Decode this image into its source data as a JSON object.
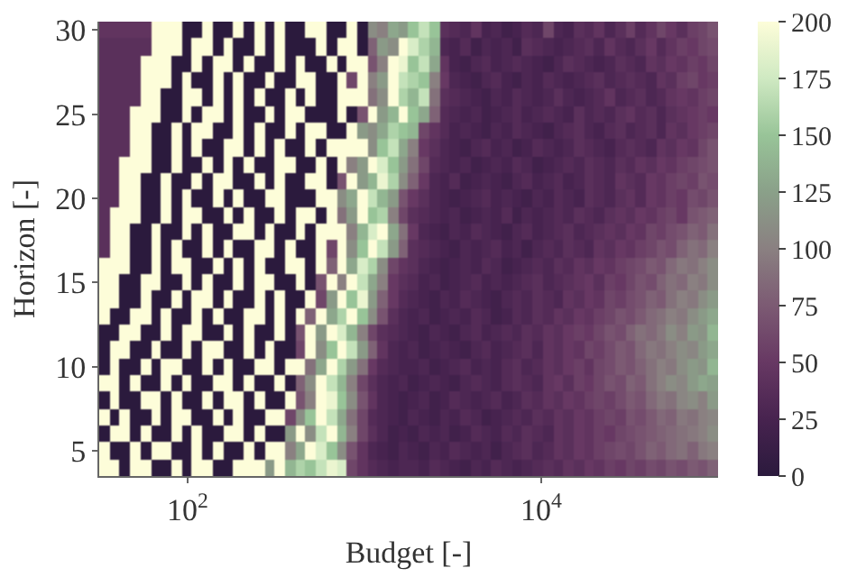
{
  "chart_data": {
    "type": "heatmap",
    "xlabel": "Budget [-]",
    "ylabel": "Horizon [-]",
    "log": "x",
    "x": [
      33.8,
      38.7,
      44.2,
      50.6,
      57.8,
      66.1,
      75.6,
      86.5,
      98.9,
      113,
      129,
      148,
      170,
      194,
      222,
      254,
      290,
      332,
      379,
      434,
      496,
      568,
      649,
      743,
      849,
      971,
      1110,
      1270,
      1450,
      1660,
      1900,
      2180,
      2490,
      2850,
      3250,
      3720,
      4260,
      4870,
      5570,
      6370,
      7280,
      8330,
      9530,
      10900,
      12500,
      14300,
      16300,
      18700,
      21300,
      24400,
      27900,
      31900,
      36500,
      41800,
      47800,
      54600,
      62500,
      71500,
      81700,
      93500
    ],
    "y": [
      30,
      29,
      28,
      27,
      26,
      25,
      24,
      23,
      22,
      21,
      20,
      19,
      18,
      17,
      16,
      15,
      14,
      13,
      12,
      11,
      10,
      9,
      8,
      7,
      6,
      5,
      4
    ],
    "xlim": [
      31.6,
      100000
    ],
    "xticks": [
      {
        "value": 100,
        "label": "10$^{2}$"
      },
      {
        "value": 10000,
        "label": "10$^{4}$"
      }
    ],
    "ylim": [
      3.5,
      30.5
    ],
    "yticks": [
      5,
      10,
      15,
      20,
      25,
      30
    ],
    "clim": [
      0,
      200
    ],
    "cticks": [
      0,
      25,
      50,
      75,
      100,
      125,
      150,
      175,
      200
    ],
    "cells": [
      [
        45,
        45,
        45,
        45,
        45,
        200,
        200,
        200,
        0,
        0,
        200,
        0,
        0,
        200,
        0,
        200,
        0,
        200,
        0,
        0,
        200,
        200,
        0,
        0,
        200,
        0,
        110,
        100,
        130,
        120,
        150,
        170,
        150,
        40,
        35,
        30,
        45,
        25,
        30,
        20,
        25,
        35,
        30,
        60,
        30,
        25,
        40,
        35,
        45,
        30,
        40,
        55,
        35,
        45,
        60,
        50,
        40,
        55,
        60,
        70
      ],
      [
        40,
        40,
        40,
        40,
        40,
        200,
        200,
        200,
        0,
        200,
        200,
        0,
        200,
        0,
        0,
        200,
        0,
        200,
        0,
        0,
        0,
        200,
        0,
        200,
        200,
        0,
        80,
        120,
        110,
        200,
        180,
        160,
        140,
        30,
        25,
        35,
        20,
        30,
        25,
        30,
        20,
        40,
        35,
        30,
        25,
        30,
        35,
        40,
        30,
        45,
        35,
        30,
        40,
        50,
        35,
        45,
        55,
        50,
        60,
        65
      ],
      [
        40,
        40,
        40,
        40,
        200,
        200,
        200,
        0,
        0,
        200,
        0,
        200,
        200,
        0,
        200,
        0,
        0,
        200,
        0,
        200,
        0,
        0,
        200,
        0,
        200,
        200,
        70,
        100,
        200,
        190,
        150,
        170,
        130,
        45,
        25,
        20,
        30,
        35,
        25,
        30,
        35,
        30,
        25,
        20,
        30,
        40,
        35,
        30,
        25,
        30,
        40,
        35,
        30,
        45,
        40,
        50,
        45,
        55,
        50,
        60
      ],
      [
        40,
        40,
        40,
        40,
        200,
        200,
        200,
        0,
        200,
        0,
        0,
        200,
        0,
        200,
        0,
        0,
        200,
        0,
        0,
        200,
        200,
        0,
        0,
        200,
        60,
        200,
        100,
        120,
        200,
        170,
        160,
        150,
        100,
        50,
        30,
        25,
        20,
        30,
        35,
        25,
        20,
        30,
        25,
        35,
        30,
        25,
        30,
        35,
        40,
        30,
        35,
        40,
        35,
        30,
        45,
        40,
        55,
        60,
        50,
        55
      ],
      [
        40,
        40,
        40,
        40,
        200,
        200,
        0,
        0,
        200,
        200,
        0,
        200,
        0,
        200,
        0,
        200,
        0,
        0,
        200,
        0,
        200,
        0,
        0,
        200,
        200,
        200,
        90,
        110,
        200,
        160,
        140,
        170,
        90,
        40,
        35,
        30,
        25,
        20,
        30,
        25,
        35,
        30,
        25,
        30,
        40,
        30,
        25,
        30,
        35,
        45,
        30,
        35,
        40,
        30,
        35,
        45,
        50,
        45,
        55,
        60
      ],
      [
        40,
        40,
        40,
        200,
        200,
        200,
        0,
        0,
        200,
        0,
        200,
        200,
        0,
        200,
        0,
        0,
        200,
        0,
        200,
        200,
        0,
        0,
        0,
        200,
        0,
        70,
        200,
        120,
        140,
        200,
        150,
        130,
        80,
        35,
        30,
        25,
        30,
        20,
        25,
        30,
        35,
        25,
        30,
        35,
        30,
        25,
        40,
        30,
        35,
        30,
        40,
        45,
        35,
        40,
        30,
        40,
        45,
        50,
        55,
        50
      ],
      [
        40,
        40,
        40,
        200,
        200,
        0,
        0,
        200,
        0,
        200,
        200,
        0,
        0,
        200,
        0,
        200,
        0,
        0,
        200,
        0,
        200,
        200,
        0,
        0,
        200,
        120,
        110,
        130,
        160,
        150,
        140,
        60,
        45,
        35,
        25,
        30,
        25,
        20,
        30,
        25,
        35,
        30,
        25,
        20,
        30,
        35,
        40,
        30,
        25,
        35,
        40,
        30,
        35,
        40,
        30,
        45,
        40,
        50,
        55,
        60
      ],
      [
        40,
        40,
        40,
        200,
        200,
        0,
        0,
        200,
        0,
        200,
        0,
        0,
        200,
        200,
        0,
        200,
        0,
        200,
        0,
        0,
        200,
        0,
        200,
        200,
        200,
        200,
        110,
        150,
        170,
        130,
        100,
        50,
        40,
        30,
        25,
        20,
        30,
        35,
        25,
        30,
        20,
        25,
        35,
        30,
        25,
        30,
        40,
        35,
        30,
        25,
        35,
        40,
        35,
        30,
        45,
        40,
        50,
        45,
        60,
        70
      ],
      [
        40,
        40,
        200,
        200,
        200,
        0,
        0,
        200,
        0,
        0,
        200,
        0,
        200,
        0,
        200,
        0,
        0,
        200,
        200,
        0,
        0,
        200,
        0,
        200,
        100,
        120,
        200,
        180,
        150,
        120,
        90,
        60,
        35,
        30,
        25,
        30,
        20,
        25,
        30,
        25,
        35,
        30,
        20,
        25,
        30,
        35,
        30,
        40,
        35,
        30,
        40,
        35,
        45,
        40,
        50,
        45,
        55,
        60,
        65,
        70
      ],
      [
        40,
        40,
        200,
        200,
        0,
        0,
        200,
        0,
        0,
        200,
        0,
        200,
        200,
        0,
        0,
        200,
        0,
        200,
        0,
        0,
        200,
        200,
        0,
        70,
        200,
        120,
        140,
        190,
        160,
        110,
        80,
        50,
        30,
        25,
        35,
        20,
        25,
        30,
        25,
        20,
        30,
        35,
        25,
        30,
        35,
        25,
        30,
        40,
        35,
        30,
        45,
        40,
        35,
        50,
        45,
        55,
        60,
        55,
        70,
        65
      ],
      [
        40,
        40,
        200,
        200,
        0,
        0,
        200,
        0,
        200,
        0,
        0,
        200,
        0,
        200,
        0,
        0,
        200,
        200,
        0,
        0,
        0,
        200,
        200,
        110,
        130,
        200,
        170,
        140,
        120,
        70,
        50,
        40,
        30,
        25,
        20,
        25,
        30,
        35,
        25,
        30,
        25,
        20,
        30,
        25,
        35,
        30,
        25,
        40,
        35,
        30,
        40,
        45,
        35,
        50,
        45,
        55,
        50,
        65,
        60,
        70
      ],
      [
        40,
        200,
        200,
        200,
        0,
        0,
        200,
        0,
        200,
        200,
        0,
        0,
        200,
        0,
        200,
        0,
        0,
        200,
        0,
        200,
        200,
        0,
        200,
        90,
        120,
        200,
        150,
        160,
        100,
        60,
        40,
        35,
        30,
        25,
        30,
        20,
        25,
        30,
        25,
        35,
        20,
        30,
        25,
        30,
        35,
        30,
        40,
        35,
        30,
        40,
        45,
        40,
        50,
        45,
        55,
        60,
        50,
        70,
        75,
        80
      ],
      [
        40,
        200,
        200,
        0,
        0,
        200,
        0,
        0,
        200,
        0,
        200,
        0,
        0,
        200,
        200,
        0,
        200,
        0,
        0,
        200,
        0,
        200,
        200,
        200,
        100,
        140,
        180,
        200,
        130,
        90,
        50,
        30,
        25,
        20,
        30,
        25,
        35,
        30,
        25,
        20,
        30,
        35,
        25,
        30,
        35,
        40,
        30,
        35,
        40,
        45,
        40,
        50,
        45,
        60,
        55,
        65,
        70,
        80,
        75,
        90
      ],
      [
        40,
        200,
        200,
        0,
        0,
        200,
        0,
        200,
        0,
        0,
        200,
        0,
        200,
        0,
        0,
        200,
        200,
        0,
        200,
        0,
        0,
        200,
        60,
        200,
        110,
        150,
        200,
        170,
        120,
        80,
        40,
        35,
        30,
        25,
        20,
        30,
        25,
        30,
        35,
        25,
        30,
        20,
        30,
        35,
        30,
        40,
        35,
        30,
        45,
        40,
        50,
        45,
        55,
        60,
        70,
        65,
        80,
        90,
        85,
        100
      ],
      [
        200,
        200,
        200,
        0,
        0,
        200,
        0,
        200,
        200,
        0,
        0,
        200,
        0,
        200,
        0,
        200,
        0,
        0,
        200,
        200,
        0,
        200,
        80,
        200,
        130,
        180,
        160,
        110,
        60,
        45,
        40,
        30,
        25,
        20,
        25,
        30,
        25,
        35,
        30,
        20,
        25,
        30,
        35,
        30,
        40,
        35,
        45,
        40,
        50,
        45,
        55,
        60,
        65,
        75,
        70,
        85,
        95,
        90,
        100,
        110
      ],
      [
        200,
        200,
        0,
        0,
        200,
        200,
        0,
        0,
        200,
        0,
        200,
        0,
        0,
        200,
        0,
        200,
        200,
        0,
        0,
        200,
        0,
        70,
        200,
        100,
        200,
        170,
        130,
        100,
        50,
        40,
        35,
        25,
        30,
        20,
        25,
        30,
        35,
        25,
        30,
        25,
        30,
        35,
        40,
        30,
        35,
        40,
        45,
        50,
        40,
        55,
        50,
        60,
        70,
        65,
        80,
        90,
        85,
        100,
        95,
        110
      ],
      [
        200,
        200,
        0,
        0,
        200,
        0,
        0,
        200,
        0,
        200,
        200,
        0,
        200,
        0,
        0,
        200,
        0,
        200,
        0,
        0,
        200,
        60,
        120,
        200,
        150,
        190,
        120,
        80,
        50,
        35,
        30,
        25,
        20,
        30,
        25,
        35,
        30,
        25,
        20,
        30,
        35,
        30,
        40,
        35,
        30,
        45,
        40,
        50,
        45,
        60,
        55,
        65,
        70,
        80,
        75,
        90,
        100,
        95,
        110,
        120
      ],
      [
        200,
        0,
        0,
        200,
        200,
        0,
        200,
        0,
        0,
        200,
        0,
        200,
        0,
        0,
        200,
        200,
        0,
        200,
        0,
        200,
        80,
        200,
        130,
        160,
        200,
        150,
        110,
        70,
        40,
        30,
        25,
        30,
        20,
        25,
        30,
        25,
        35,
        30,
        20,
        25,
        35,
        30,
        40,
        35,
        45,
        40,
        50,
        45,
        55,
        60,
        70,
        65,
        75,
        85,
        90,
        100,
        95,
        110,
        120,
        130
      ],
      [
        0,
        0,
        200,
        200,
        0,
        0,
        200,
        0,
        200,
        200,
        0,
        0,
        200,
        0,
        200,
        0,
        0,
        200,
        0,
        70,
        200,
        120,
        200,
        180,
        140,
        100,
        60,
        40,
        35,
        30,
        25,
        20,
        30,
        25,
        20,
        30,
        35,
        25,
        30,
        35,
        30,
        40,
        35,
        45,
        40,
        50,
        55,
        50,
        60,
        70,
        65,
        80,
        90,
        85,
        95,
        110,
        100,
        120,
        115,
        140
      ],
      [
        0,
        200,
        200,
        0,
        0,
        200,
        0,
        0,
        200,
        0,
        200,
        200,
        0,
        0,
        200,
        0,
        200,
        0,
        0,
        60,
        200,
        110,
        150,
        200,
        170,
        120,
        80,
        45,
        30,
        25,
        30,
        20,
        25,
        30,
        25,
        20,
        30,
        35,
        25,
        30,
        35,
        40,
        30,
        45,
        40,
        50,
        45,
        60,
        55,
        65,
        75,
        70,
        85,
        95,
        90,
        100,
        110,
        105,
        120,
        130
      ],
      [
        0,
        200,
        0,
        0,
        200,
        0,
        200,
        200,
        0,
        0,
        200,
        0,
        200,
        0,
        0,
        200,
        200,
        0,
        200,
        200,
        90,
        130,
        200,
        160,
        120,
        90,
        50,
        35,
        30,
        25,
        25,
        30,
        20,
        25,
        30,
        35,
        25,
        30,
        25,
        35,
        40,
        30,
        35,
        45,
        40,
        50,
        55,
        45,
        60,
        65,
        75,
        70,
        80,
        90,
        100,
        95,
        110,
        120,
        115,
        140
      ],
      [
        200,
        200,
        0,
        200,
        0,
        0,
        200,
        0,
        200,
        0,
        0,
        200,
        200,
        0,
        200,
        0,
        0,
        200,
        0,
        80,
        110,
        200,
        170,
        140,
        100,
        60,
        40,
        30,
        25,
        30,
        20,
        25,
        30,
        25,
        20,
        30,
        35,
        30,
        25,
        35,
        40,
        35,
        30,
        45,
        50,
        40,
        55,
        50,
        60,
        70,
        65,
        80,
        75,
        90,
        100,
        110,
        105,
        120,
        130,
        125
      ],
      [
        0,
        200,
        0,
        0,
        200,
        200,
        0,
        200,
        0,
        0,
        200,
        0,
        200,
        200,
        0,
        200,
        0,
        0,
        200,
        70,
        100,
        200,
        190,
        150,
        110,
        70,
        45,
        30,
        25,
        20,
        25,
        30,
        20,
        25,
        35,
        30,
        25,
        30,
        35,
        25,
        30,
        40,
        35,
        45,
        40,
        50,
        45,
        55,
        60,
        55,
        65,
        75,
        70,
        85,
        95,
        90,
        105,
        110,
        100,
        120
      ],
      [
        200,
        0,
        200,
        0,
        0,
        200,
        0,
        200,
        200,
        0,
        0,
        200,
        0,
        200,
        0,
        0,
        200,
        200,
        60,
        110,
        150,
        200,
        170,
        130,
        90,
        60,
        35,
        30,
        25,
        20,
        30,
        25,
        20,
        30,
        25,
        35,
        30,
        20,
        25,
        30,
        35,
        30,
        40,
        35,
        45,
        40,
        50,
        45,
        55,
        60,
        55,
        70,
        65,
        75,
        85,
        80,
        95,
        90,
        100,
        105
      ],
      [
        0,
        200,
        200,
        0,
        200,
        0,
        0,
        200,
        0,
        200,
        0,
        0,
        200,
        200,
        0,
        200,
        0,
        0,
        120,
        200,
        110,
        170,
        200,
        140,
        100,
        60,
        40,
        30,
        20,
        25,
        20,
        30,
        25,
        30,
        20,
        25,
        35,
        30,
        25,
        35,
        30,
        40,
        35,
        30,
        45,
        40,
        50,
        45,
        55,
        50,
        60,
        65,
        70,
        75,
        80,
        85,
        90,
        95,
        100,
        110
      ],
      [
        200,
        0,
        0,
        200,
        0,
        200,
        200,
        0,
        0,
        200,
        0,
        200,
        0,
        0,
        200,
        0,
        200,
        200,
        100,
        130,
        200,
        180,
        150,
        110,
        70,
        45,
        30,
        25,
        20,
        30,
        25,
        20,
        30,
        25,
        35,
        30,
        25,
        30,
        20,
        30,
        35,
        40,
        30,
        35,
        45,
        40,
        50,
        45,
        55,
        60,
        65,
        60,
        70,
        80,
        75,
        85,
        90,
        80,
        95,
        100
      ],
      [
        200,
        200,
        0,
        200,
        200,
        0,
        0,
        200,
        0,
        200,
        200,
        0,
        0,
        200,
        200,
        200,
        120,
        200,
        140,
        160,
        150,
        170,
        190,
        180,
        60,
        45,
        35,
        30,
        25,
        30,
        30,
        25,
        35,
        30,
        25,
        20,
        30,
        25,
        35,
        30,
        25,
        30,
        35,
        40,
        35,
        45,
        40,
        50,
        45,
        55,
        50,
        60,
        55,
        65,
        60,
        70,
        65,
        75,
        70,
        80
      ]
    ]
  }
}
